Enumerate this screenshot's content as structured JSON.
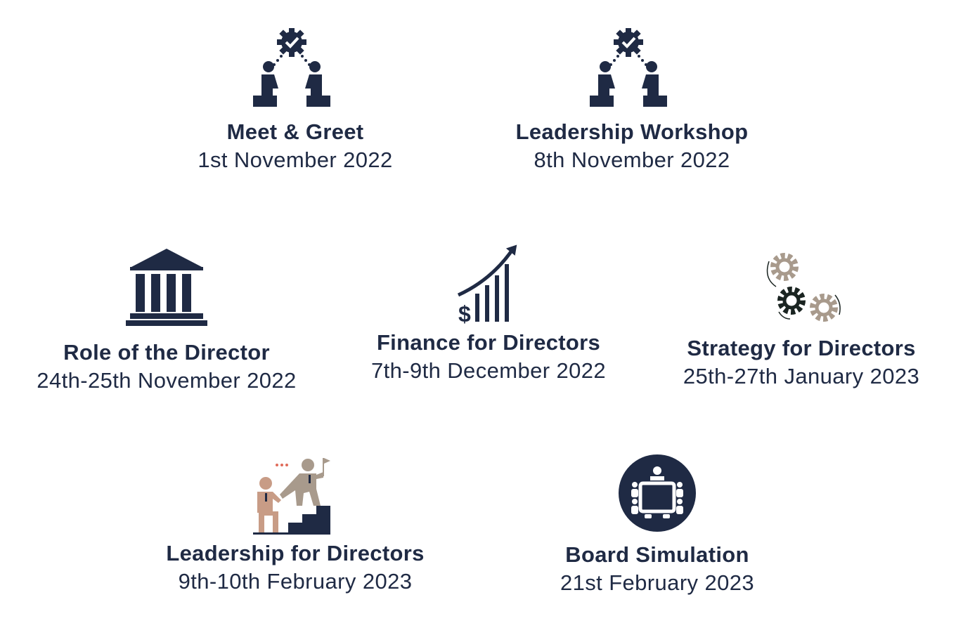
{
  "colors": {
    "navy": "#1f2a44",
    "taupe": "#a89a8c",
    "skin": "#c89c86",
    "dark_gear": "#1a2421",
    "dots": "#e06b5a"
  },
  "events": [
    {
      "id": "meet",
      "icon": "collaboration-gear-icon",
      "title": "Meet & Greet",
      "date": "1st November 2022"
    },
    {
      "id": "lead",
      "icon": "collaboration-gear-icon",
      "title": "Leadership Workshop",
      "date": "8th November 2022"
    },
    {
      "id": "role",
      "icon": "institution-building-icon",
      "title": "Role of the Director",
      "date": "24th-25th November 2022"
    },
    {
      "id": "fin",
      "icon": "growth-chart-dollar-icon",
      "title": "Finance for Directors",
      "date": "7th-9th December 2022"
    },
    {
      "id": "strat",
      "icon": "gears-icon",
      "title": "Strategy for Directors",
      "date": "25th-27th January 2023"
    },
    {
      "id": "ldir",
      "icon": "helping-hand-stairs-icon",
      "title": "Leadership for Directors",
      "date": "9th-10th February 2023"
    },
    {
      "id": "board",
      "icon": "boardroom-meeting-icon",
      "title": "Board Simulation",
      "date": "21st February 2023"
    }
  ]
}
